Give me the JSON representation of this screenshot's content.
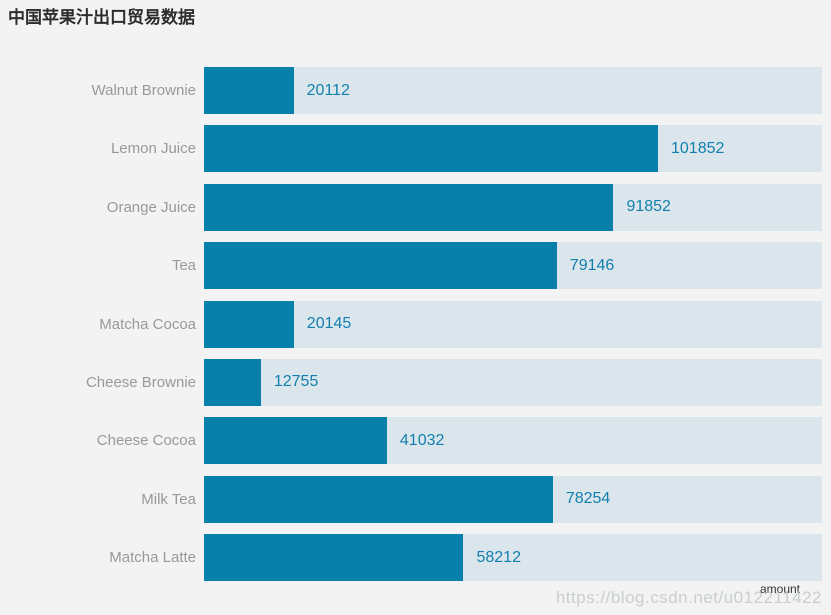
{
  "title": "中国苹果汁出口贸易数据",
  "axis_name": "amount",
  "watermark": "https://blog.csdn.net/u012211422",
  "colors": {
    "bar_fill": "#0780ac",
    "bar_track": "#dbe6ec",
    "value_text": "#127fae",
    "category_text": "#999999",
    "title_text": "#2d2d2d",
    "background": "#f2f3f2"
  },
  "chart_data": {
    "type": "bar",
    "orientation": "horizontal",
    "title": "中国苹果汁出口贸易数据",
    "categories": [
      "Walnut Brownie",
      "Lemon Juice",
      "Orange Juice",
      "Tea",
      "Matcha Cocoa",
      "Cheese Brownie",
      "Cheese Cocoa",
      "Milk Tea",
      "Matcha Latte"
    ],
    "values": [
      20112,
      101852,
      91852,
      79146,
      20145,
      12755,
      41032,
      78254,
      58212
    ],
    "xlabel": "amount",
    "ylabel": "",
    "xlim": [
      0,
      138640
    ],
    "value_labels_shown": true,
    "grid": false,
    "legend": false,
    "bar_background_shown": true
  }
}
